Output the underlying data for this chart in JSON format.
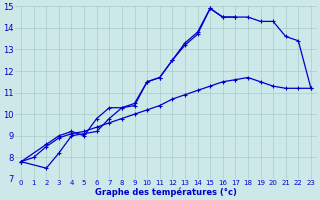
{
  "title": "Graphe des températures (°c)",
  "background_color": "#cce8e8",
  "grid_color": "#aacaca",
  "line_color": "#0000cc",
  "xlim": [
    -0.5,
    23.5
  ],
  "ylim": [
    7,
    15
  ],
  "yticks": [
    7,
    8,
    9,
    10,
    11,
    12,
    13,
    14,
    15
  ],
  "xticks": [
    0,
    1,
    2,
    3,
    4,
    5,
    6,
    7,
    8,
    9,
    10,
    11,
    12,
    13,
    14,
    15,
    16,
    17,
    18,
    19,
    20,
    21,
    22,
    23
  ],
  "line1_x": [
    0,
    2,
    3,
    4,
    5,
    6,
    7,
    8,
    9,
    10,
    11,
    12,
    13,
    14,
    15,
    16,
    17
  ],
  "line1_y": [
    7.8,
    8.6,
    9.0,
    9.2,
    9.0,
    9.8,
    10.3,
    10.3,
    10.5,
    11.5,
    11.7,
    12.5,
    13.3,
    13.8,
    14.9,
    14.5,
    14.5
  ],
  "line2_x": [
    0,
    2,
    3,
    4,
    5,
    6,
    7,
    8,
    9,
    10,
    11,
    12,
    13,
    14,
    15,
    16,
    17,
    18,
    19,
    20,
    21,
    22,
    23
  ],
  "line2_y": [
    7.8,
    7.5,
    8.2,
    9.0,
    9.1,
    9.2,
    9.8,
    10.3,
    10.4,
    11.5,
    11.7,
    12.5,
    13.2,
    13.7,
    14.9,
    14.5,
    14.5,
    14.5,
    14.3,
    14.3,
    13.6,
    13.4,
    11.2
  ],
  "line3_x": [
    0,
    1,
    2,
    3,
    4,
    5,
    6,
    7,
    8,
    9,
    10,
    11,
    12,
    13,
    14,
    15,
    16,
    17,
    18,
    19,
    20,
    21,
    22,
    23
  ],
  "line3_y": [
    7.8,
    8.0,
    8.5,
    8.9,
    9.1,
    9.2,
    9.4,
    9.6,
    9.8,
    10.0,
    10.2,
    10.4,
    10.7,
    10.9,
    11.1,
    11.3,
    11.5,
    11.6,
    11.7,
    11.5,
    11.3,
    11.2,
    11.2,
    11.2
  ]
}
